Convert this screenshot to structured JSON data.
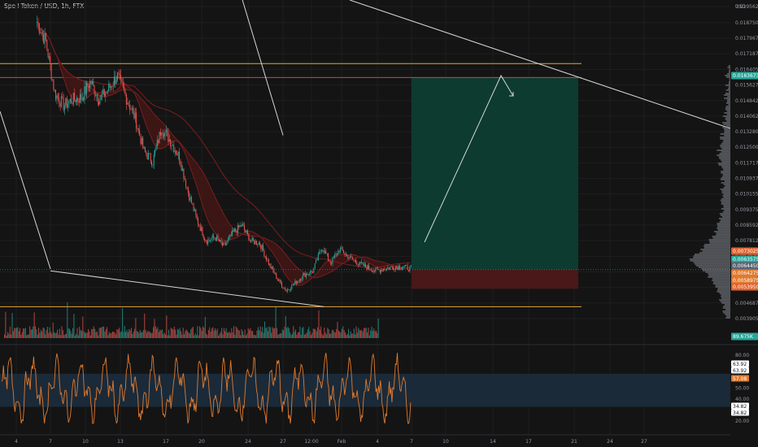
{
  "header": {
    "title": "Spell Token / USD, 1h, FTX",
    "price_currency": "USD"
  },
  "colors": {
    "background": "#141414",
    "grid": "#1e1e1e",
    "candle_up": "#26a69a",
    "candle_down": "#ef5350",
    "ribbon_fill": "#4a1515",
    "ribbon_line": "#7a1e1e",
    "horizontal_line": "#e0a53c",
    "trendline": "#d6d6d6",
    "target_zone": "#0d3b2f",
    "stop_zone": "#4a1818",
    "rsi_line": "#e07a2e",
    "rsi_band": "#1b2a38",
    "current_price": "#26a69a"
  },
  "price_scale": {
    "labels": [
      "0.0195625",
      "0.0187500",
      "0.0179675",
      "0.0171875",
      "0.0164050",
      "0.0156275",
      "0.0148425",
      "0.0140625",
      "0.0132800",
      "0.0125000",
      "0.0117175",
      "0.0109375",
      "0.0101550",
      "0.0093750",
      "0.0085925",
      "0.0078125",
      "0.0070300",
      "0.0062500",
      "0.0054675",
      "0.0046875",
      "0.0039050"
    ]
  },
  "price_tags": [
    {
      "text": "0.0163673",
      "color": "#26a69a"
    },
    {
      "text": "0.0073025",
      "color": "#e0622e"
    },
    {
      "text": "0.0063575",
      "color": "#26a69a"
    },
    {
      "text": "0.0064450",
      "color": "#5b6273"
    },
    {
      "text": "0.0064275",
      "color": "#e07a2e"
    },
    {
      "text": "0.0058975",
      "color": "#e07a2e"
    },
    {
      "text": "0.0053950",
      "color": "#e0622e"
    },
    {
      "text": "89.675K",
      "color": "#26a69a"
    }
  ],
  "rsi_scale": {
    "labels": [
      "80.00",
      "70.00",
      "60.00",
      "50.00",
      "40.00",
      "30.00",
      "20.00"
    ],
    "tags": [
      {
        "text": "63.92",
        "color": "#ffffff",
        "text_color": "#131722"
      },
      {
        "text": "63.92",
        "color": "#ffffff",
        "text_color": "#131722"
      },
      {
        "text": "57.08",
        "color": "#e07a2e",
        "text_color": "#ffffff"
      },
      {
        "text": "34.82",
        "color": "#ffffff",
        "text_color": "#131722"
      },
      {
        "text": "34.82",
        "color": "#ffffff",
        "text_color": "#131722"
      }
    ]
  },
  "time_axis": {
    "labels": [
      "4",
      "7",
      "10",
      "13",
      "17",
      "20",
      "24",
      "27",
      "12:00",
      "Feb",
      "4",
      "7",
      "10",
      "14",
      "17",
      "21",
      "24",
      "27"
    ]
  },
  "chart_data": {
    "type": "candlestick",
    "title": "Spell Token / USD, 1h, FTX",
    "ylim": [
      0.0039,
      0.0198
    ],
    "horizontal_levels": [
      0.0167,
      0.016,
      0.0045
    ],
    "current_price": 0.0063575,
    "long_position": {
      "entry": 0.0063575,
      "target": 0.016,
      "stop": 0.0054
    },
    "trendlines": [
      {
        "from": [
          "5",
          0.0143
        ],
        "to": [
          "7",
          0.0064
        ]
      },
      {
        "from": [
          "27",
          0.0045
        ],
        "to": [
          "7",
          0.0063
        ]
      },
      {
        "from": [
          "20",
          0.0199
        ],
        "to": [
          "27",
          0.0131
        ]
      }
    ],
    "anchor_closes": [
      0.0188,
      0.0178,
      0.0152,
      0.0146,
      0.0149,
      0.015,
      0.0158,
      0.0149,
      0.0154,
      0.0161,
      0.015,
      0.014,
      0.0123,
      0.0118,
      0.0135,
      0.0128,
      0.012,
      0.0102,
      0.0088,
      0.0078,
      0.008,
      0.0075,
      0.0082,
      0.0086,
      0.0078,
      0.0077,
      0.0067,
      0.0059,
      0.0053,
      0.0057,
      0.0061,
      0.0063,
      0.0075,
      0.0067,
      0.0074,
      0.007,
      0.0067,
      0.0065,
      0.0063,
      0.0064,
      0.0065,
      0.0065,
      0.0064
    ],
    "indicator": {
      "name": "RSI",
      "ylim": [
        15,
        85
      ],
      "band": [
        33,
        63
      ],
      "last": 57.08
    }
  }
}
